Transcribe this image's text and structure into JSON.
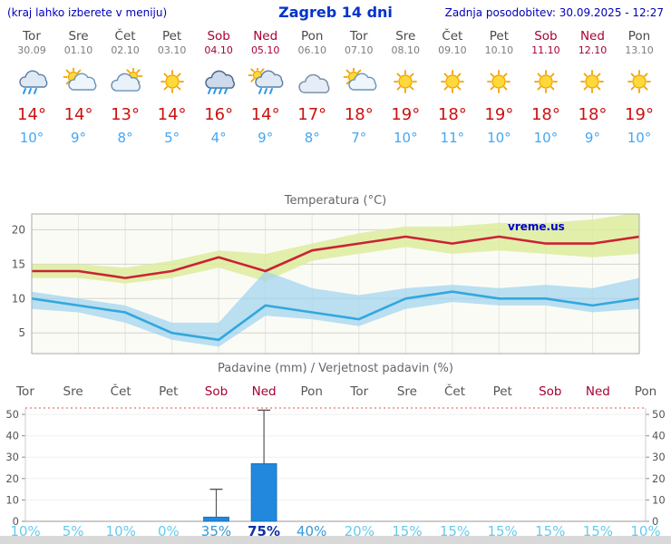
{
  "header": {
    "left_note": "(kraj lahko izberete v meniju)",
    "title": "Zagreb 14 dni",
    "updated": "Zadnja posodobitev: 30.09.2025 - 12:27"
  },
  "colors": {
    "header_blue": "#0000bb",
    "title_blue": "#0033cc",
    "weekend_red": "#a80032",
    "temp_max_red": "#cc1111",
    "temp_min_blue": "#45a7f2",
    "bar_blue": "#2288dd",
    "prob_low": "#67cbee",
    "prob_mid": "#3598d8",
    "prob_high": "#1230a6"
  },
  "days": [
    {
      "name": "Tor",
      "date": "30.09",
      "weekend": false,
      "icon": "rain",
      "tmax": "14°",
      "tmin": "10°"
    },
    {
      "name": "Sre",
      "date": "01.10",
      "weekend": false,
      "icon": "sun-cloud",
      "tmax": "14°",
      "tmin": "9°"
    },
    {
      "name": "Čet",
      "date": "02.10",
      "weekend": false,
      "icon": "cloud-sun",
      "tmax": "13°",
      "tmin": "8°"
    },
    {
      "name": "Pet",
      "date": "03.10",
      "weekend": false,
      "icon": "sun",
      "tmax": "14°",
      "tmin": "5°"
    },
    {
      "name": "Sob",
      "date": "04.10",
      "weekend": true,
      "icon": "rain-heavy",
      "tmax": "16°",
      "tmin": "4°"
    },
    {
      "name": "Ned",
      "date": "05.10",
      "weekend": true,
      "icon": "sun-rain",
      "tmax": "14°",
      "tmin": "9°"
    },
    {
      "name": "Pon",
      "date": "06.10",
      "weekend": false,
      "icon": "cloud",
      "tmax": "17°",
      "tmin": "8°"
    },
    {
      "name": "Tor",
      "date": "07.10",
      "weekend": false,
      "icon": "sun-cloud",
      "tmax": "18°",
      "tmin": "7°"
    },
    {
      "name": "Sre",
      "date": "08.10",
      "weekend": false,
      "icon": "sun",
      "tmax": "19°",
      "tmin": "10°"
    },
    {
      "name": "Čet",
      "date": "09.10",
      "weekend": false,
      "icon": "sun",
      "tmax": "18°",
      "tmin": "11°"
    },
    {
      "name": "Pet",
      "date": "10.10",
      "weekend": false,
      "icon": "sun",
      "tmax": "19°",
      "tmin": "10°"
    },
    {
      "name": "Sob",
      "date": "11.10",
      "weekend": true,
      "icon": "sun",
      "tmax": "18°",
      "tmin": "10°"
    },
    {
      "name": "Ned",
      "date": "12.10",
      "weekend": true,
      "icon": "sun",
      "tmax": "18°",
      "tmin": "9°"
    },
    {
      "name": "Pon",
      "date": "13.10",
      "weekend": false,
      "icon": "sun",
      "tmax": "19°",
      "tmin": "10°"
    }
  ],
  "chart_data": [
    {
      "type": "line",
      "title": "Temperatura (°C)",
      "watermark": "vreme.us",
      "x_labels": [
        "Tor",
        "Sre",
        "Čet",
        "Pet",
        "Sob",
        "Ned",
        "Pon",
        "Tor",
        "Sre",
        "Čet",
        "Pet",
        "Sob",
        "Ned",
        "Pon"
      ],
      "ylim": [
        2,
        22.3
      ],
      "yticks": [
        5,
        10,
        15,
        20
      ],
      "grid": true,
      "series": [
        {
          "name": "temp-max",
          "color": "#cc2233",
          "band_color": "#dcec9c",
          "values": [
            14,
            14,
            13,
            14,
            16,
            14,
            17,
            18,
            19,
            18,
            19,
            18,
            18,
            19
          ],
          "band_upper": [
            15,
            15,
            14.5,
            15.5,
            17,
            16.5,
            18,
            19.5,
            20.5,
            20.5,
            21,
            21,
            21.5,
            22.5
          ],
          "band_lower": [
            13,
            13,
            12.2,
            13,
            14.5,
            12.5,
            15.5,
            16.5,
            17.5,
            16.5,
            17,
            16.5,
            16,
            16.5
          ]
        },
        {
          "name": "temp-min",
          "color": "#33a7dd",
          "band_color": "#9fd4ef",
          "values": [
            10,
            9,
            8,
            5,
            4,
            9,
            8,
            7,
            10,
            11,
            10,
            10,
            9,
            10
          ],
          "band_upper": [
            11,
            10,
            9,
            6.5,
            6.5,
            14,
            11.5,
            10.5,
            11.5,
            12,
            11.5,
            12,
            11.5,
            13
          ],
          "band_lower": [
            8.5,
            8,
            6.5,
            4,
            3,
            7.5,
            7,
            6,
            8.5,
            9.5,
            9,
            9,
            8,
            8.5
          ]
        }
      ]
    },
    {
      "type": "bar",
      "title": "Padavine (mm) / Verjetnost padavin (%)",
      "categories": [
        "Tor",
        "Sre",
        "Čet",
        "Pet",
        "Sob",
        "Ned",
        "Pon",
        "Tor",
        "Sre",
        "Čet",
        "Pet",
        "Sob",
        "Ned",
        "Pon"
      ],
      "weekend_idx": [
        4,
        5,
        11,
        12
      ],
      "values_mm": [
        0,
        0,
        0,
        0,
        2,
        27,
        0,
        0,
        0,
        0,
        0,
        0,
        0,
        0
      ],
      "whisker_max": [
        0,
        0,
        0,
        0,
        15,
        52,
        0,
        0,
        0,
        0,
        0,
        0,
        0,
        0
      ],
      "probabilities": [
        "10%",
        "5%",
        "10%",
        "0%",
        "35%",
        "75%",
        "40%",
        "20%",
        "15%",
        "15%",
        "15%",
        "15%",
        "15%",
        "10%"
      ],
      "prob_levels": [
        "low",
        "low",
        "low",
        "low",
        "mid",
        "high",
        "mid",
        "low",
        "low",
        "low",
        "low",
        "low",
        "low",
        "low"
      ],
      "ylim": [
        0,
        53
      ],
      "yticks": [
        0,
        10,
        20,
        30,
        40,
        50
      ],
      "bar_color": "#2288dd"
    }
  ]
}
